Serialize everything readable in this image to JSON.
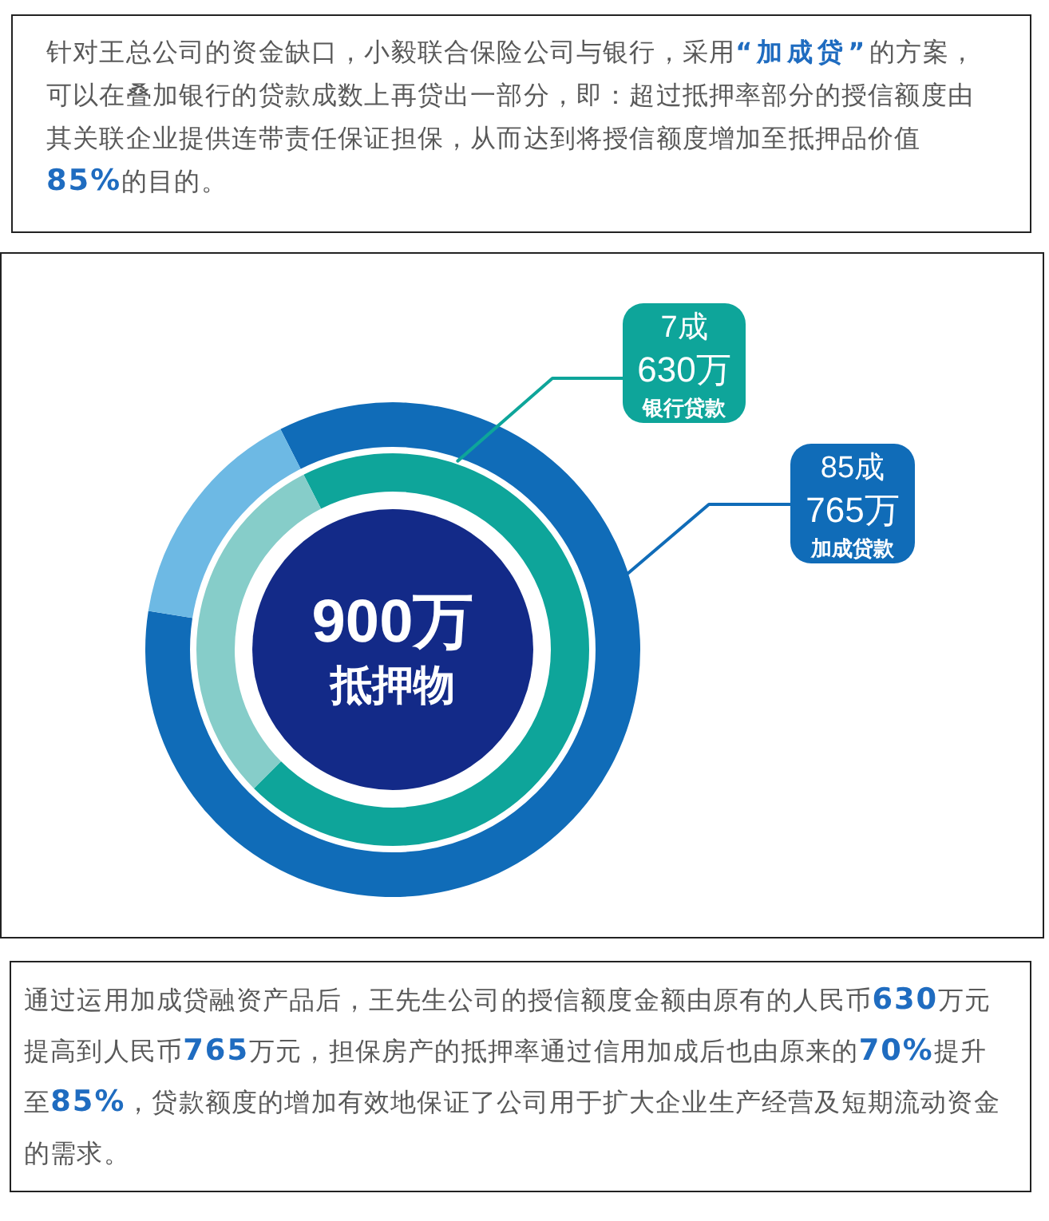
{
  "chart_data": {
    "type": "donut",
    "title": "针对王总公司的资金缺口，小毅联合保险公司与银行，采用“加成贷”的方案，可以在叠加银行的贷款成数上再贷出一部分，即：超过抵押率部分的授信额度由其关联企业提供连带责任保证担保，从而达到将授信额度增加至抵押品价值85%的目的。",
    "categories": [
      null,
      null
    ],
    "series": [
      {
        "name": "加成贷款",
        "values": [
          765,
          135
        ],
        "colors": [
          "#106cb8",
          "#6db9e4"
        ],
        "value_labels": [
          "85成\n765万",
          null
        ]
      },
      {
        "name": "银行贷款",
        "values": [
          630,
          270
        ],
        "colors": [
          "#0ea59a",
          "#86cdc9"
        ],
        "value_labels": [
          "7成\n630万",
          null
        ]
      }
    ],
    "annotations": [
      "900万",
      "抵押物",
      "通过运用加成贷融资产品后，王先生公司的授信额度金额由原有的人民币630万元提高到人民币765万元，担保房产的抵押率通过信用加成后也由原来的70%提升至85%，贷款额度的增加有效地保证了公司用于扩大企业生产经营及短期流动资金的需求。"
    ]
  }
}
